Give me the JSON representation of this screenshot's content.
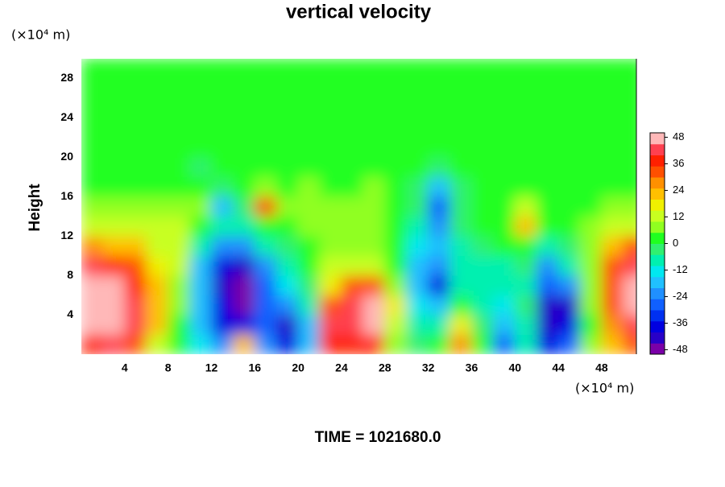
{
  "chart_data": {
    "type": "contour",
    "title": "vertical velocity",
    "ylabel": "Height",
    "yunit": "(×10⁴ m)",
    "xunit": "(×10⁴ m)",
    "footer": "TIME = 1021680.0",
    "xlim": [
      0,
      51.2
    ],
    "ylim": [
      0,
      30
    ],
    "xticks": [
      4,
      8,
      12,
      16,
      20,
      24,
      28,
      32,
      36,
      40,
      44,
      48
    ],
    "yticks": [
      4,
      8,
      12,
      16,
      20,
      24,
      28
    ],
    "x": [
      1,
      3,
      5,
      7,
      9,
      11,
      13,
      15,
      17,
      19,
      21,
      23,
      25,
      27,
      29,
      31,
      33,
      35,
      37,
      39,
      41,
      43,
      45,
      47,
      49,
      51
    ],
    "y": [
      1,
      3,
      5,
      7,
      9,
      11,
      13,
      15,
      17,
      19,
      21,
      23,
      25,
      27,
      29
    ],
    "z": [
      [
        38,
        40,
        30,
        14,
        2,
        -14,
        -24,
        20,
        -24,
        -40,
        -20,
        36,
        36,
        38,
        6,
        -4,
        4,
        26,
        4,
        -26,
        -10,
        -36,
        -30,
        6,
        22,
        30
      ],
      [
        48,
        48,
        40,
        20,
        4,
        -18,
        -36,
        -38,
        -28,
        -42,
        -18,
        40,
        44,
        48,
        14,
        -8,
        -10,
        18,
        -4,
        -20,
        -6,
        -44,
        -40,
        4,
        26,
        42
      ],
      [
        48,
        48,
        42,
        22,
        6,
        -16,
        -40,
        -48,
        -30,
        -24,
        -8,
        30,
        42,
        48,
        18,
        -14,
        -20,
        2,
        -10,
        -14,
        -4,
        -44,
        -42,
        6,
        30,
        48
      ],
      [
        48,
        46,
        38,
        20,
        8,
        -16,
        -42,
        -48,
        -30,
        -14,
        -2,
        16,
        30,
        34,
        8,
        -18,
        -36,
        -6,
        -8,
        -10,
        -6,
        -30,
        -24,
        6,
        34,
        48
      ],
      [
        40,
        36,
        30,
        18,
        10,
        -20,
        -40,
        -44,
        -22,
        -8,
        2,
        10,
        14,
        14,
        0,
        -16,
        -24,
        -10,
        -6,
        -6,
        -4,
        -22,
        -10,
        8,
        32,
        44
      ],
      [
        26,
        24,
        20,
        14,
        10,
        -10,
        -24,
        -24,
        -10,
        -2,
        4,
        8,
        8,
        8,
        2,
        -12,
        -18,
        -8,
        -2,
        0,
        4,
        -10,
        -4,
        8,
        24,
        32
      ],
      [
        12,
        12,
        12,
        10,
        10,
        2,
        -8,
        -6,
        4,
        4,
        6,
        6,
        6,
        6,
        4,
        -6,
        -22,
        -4,
        2,
        4,
        20,
        0,
        2,
        6,
        12,
        14
      ],
      [
        6,
        6,
        8,
        8,
        8,
        6,
        -16,
        -4,
        30,
        6,
        8,
        6,
        6,
        8,
        4,
        -4,
        -28,
        -2,
        4,
        4,
        14,
        2,
        2,
        4,
        6,
        6
      ],
      [
        4,
        4,
        4,
        4,
        4,
        4,
        -2,
        2,
        6,
        4,
        8,
        4,
        4,
        6,
        2,
        -4,
        -18,
        -4,
        4,
        2,
        4,
        2,
        2,
        4,
        4,
        4
      ],
      [
        2,
        2,
        2,
        2,
        2,
        -2,
        0,
        2,
        2,
        2,
        4,
        2,
        2,
        2,
        2,
        0,
        -4,
        0,
        2,
        2,
        2,
        2,
        2,
        2,
        2,
        2
      ],
      [
        0,
        0,
        0,
        0,
        0,
        0,
        0,
        0,
        0,
        0,
        0,
        0,
        0,
        0,
        0,
        0,
        0,
        0,
        0,
        0,
        0,
        0,
        0,
        0,
        0,
        0
      ],
      [
        0,
        0,
        0,
        0,
        0,
        0,
        0,
        0,
        0,
        0,
        0,
        0,
        0,
        0,
        0,
        0,
        0,
        0,
        0,
        0,
        0,
        0,
        0,
        0,
        0,
        0
      ],
      [
        0,
        0,
        0,
        0,
        0,
        0,
        0,
        0,
        0,
        0,
        0,
        0,
        0,
        0,
        0,
        0,
        0,
        0,
        0,
        0,
        0,
        0,
        0,
        0,
        0,
        0
      ],
      [
        0,
        0,
        0,
        0,
        0,
        0,
        0,
        0,
        0,
        0,
        0,
        0,
        0,
        0,
        0,
        0,
        0,
        0,
        0,
        0,
        0,
        0,
        0,
        0,
        0,
        0
      ],
      [
        0,
        0,
        0,
        0,
        0,
        0,
        0,
        0,
        0,
        0,
        0,
        0,
        0,
        0,
        0,
        0,
        0,
        0,
        0,
        0,
        0,
        0,
        0,
        0,
        0,
        0
      ]
    ],
    "colorbar": {
      "lim": [
        -50,
        50
      ],
      "ticks": [
        -48,
        -36,
        -24,
        -12,
        0,
        12,
        24,
        36,
        48
      ],
      "colors": [
        "#7a00a8",
        "#2800c8",
        "#0000e0",
        "#0030f0",
        "#1060ff",
        "#2090ff",
        "#20c0ff",
        "#00e8f0",
        "#00f0b0",
        "#30f070",
        "#20ff20",
        "#90ff20",
        "#c8ff20",
        "#f0f000",
        "#ffc000",
        "#ff9000",
        "#ff5000",
        "#ff2000",
        "#ff4050",
        "#ffb8b8"
      ]
    }
  }
}
